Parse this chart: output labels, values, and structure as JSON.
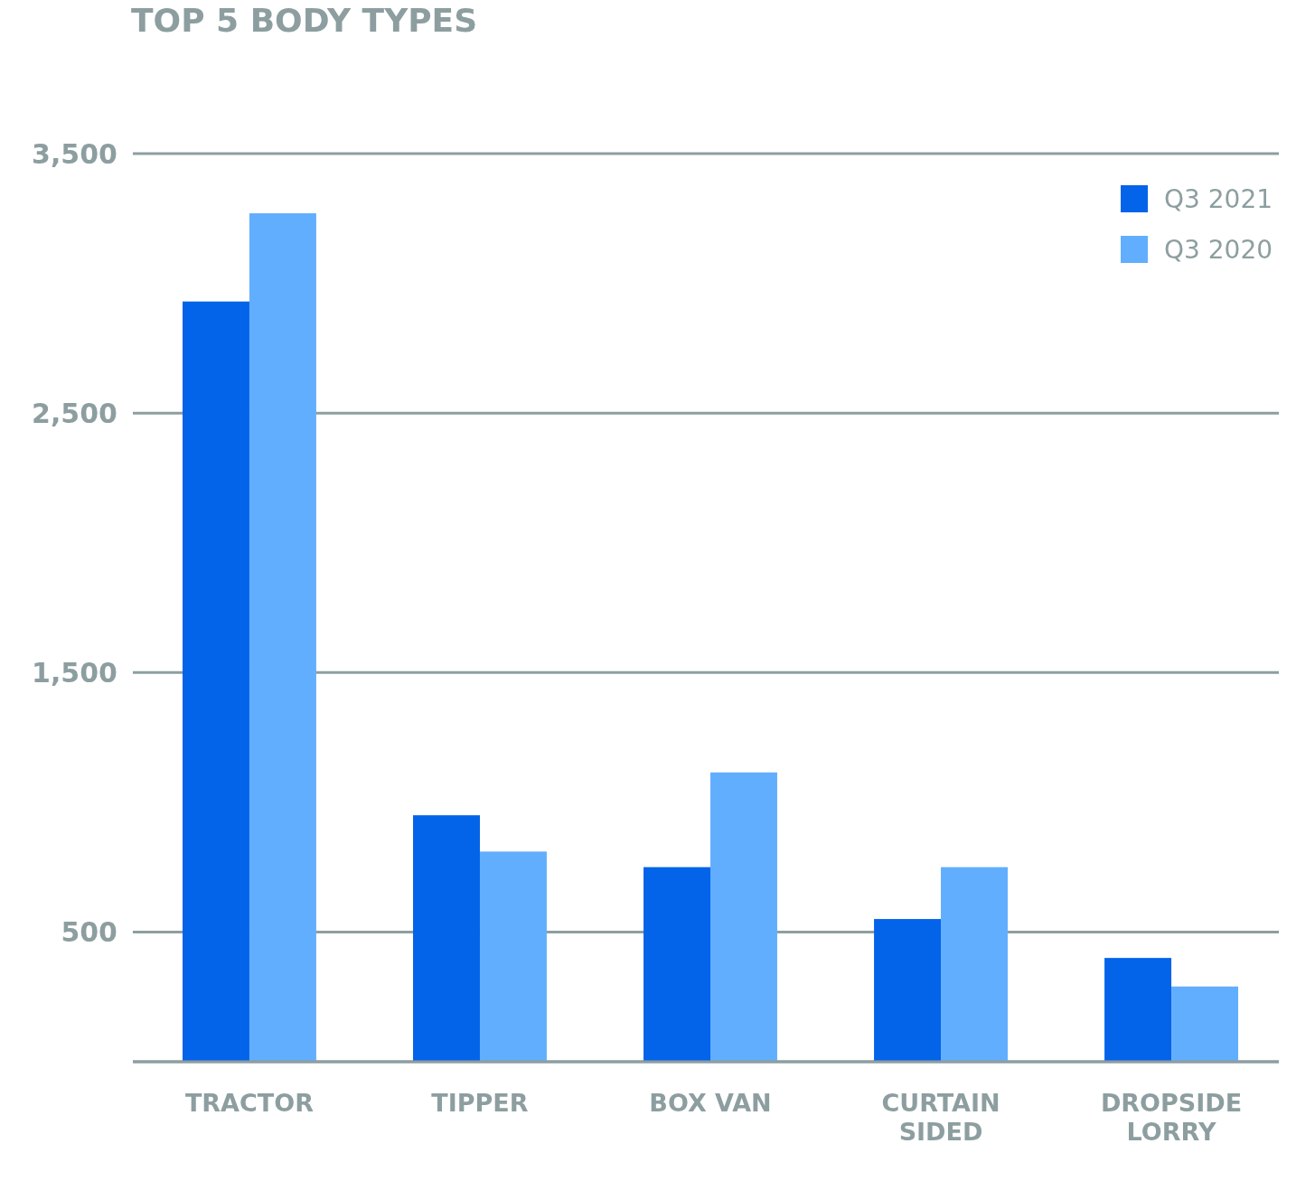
{
  "chart_data": {
    "type": "bar",
    "title": "TOP 5 BODY TYPES",
    "categories": [
      "TRACTOR",
      "TIPPER",
      "BOX VAN",
      "CURTAIN SIDED",
      "DROPSIDE LORRY"
    ],
    "series": [
      {
        "name": "Q3 2021",
        "color": "#0363e9",
        "values": [
          2930,
          950,
          750,
          550,
          400
        ]
      },
      {
        "name": "Q3 2020",
        "color": "#62aefe",
        "values": [
          3270,
          810,
          1115,
          750,
          290
        ]
      }
    ],
    "ylim": [
      0,
      3500
    ],
    "yticks": [
      {
        "value": 0,
        "label": null
      },
      500,
      {
        "value": 1500,
        "label": "1,500"
      },
      {
        "value": 2500,
        "label": "2,500"
      },
      {
        "value": 3500,
        "label": "3,500"
      }
    ],
    "grid": "y",
    "legend": "top right"
  }
}
